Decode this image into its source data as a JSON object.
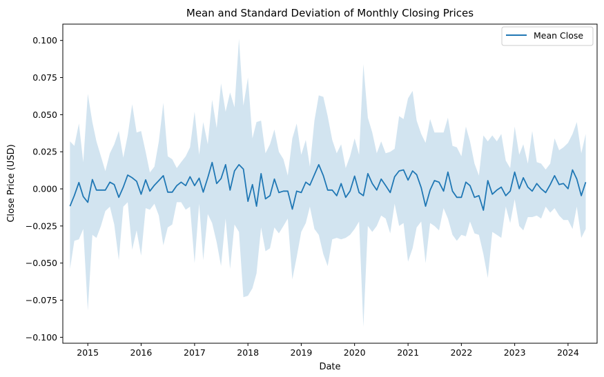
{
  "chart_data": {
    "type": "line",
    "title": "Mean and Standard Deviation of Monthly Closing Prices",
    "xlabel": "Date",
    "ylabel": "Close Price (USD)",
    "xlim": [
      "2014-07-14",
      "2024-07-18"
    ],
    "ylim": [
      -0.104,
      0.111
    ],
    "x_ticks": [
      "2015",
      "2016",
      "2017",
      "2018",
      "2019",
      "2020",
      "2021",
      "2022",
      "2023",
      "2024"
    ],
    "y_ticks": [
      "0.100",
      "0.075",
      "0.050",
      "0.025",
      "0.000",
      "−0.025",
      "−0.050",
      "−0.075",
      "−0.100"
    ],
    "y_tick_values": [
      0.1,
      0.075,
      0.05,
      0.025,
      0,
      -0.025,
      -0.05,
      -0.075,
      -0.1
    ],
    "legend": {
      "position": "top-right",
      "entries": [
        "Mean Close"
      ]
    },
    "grid": false,
    "x_start": "2014-09",
    "series": [
      {
        "name": "Mean Close",
        "color": "#1f77b4",
        "band_color": "#1f77b4",
        "mean": [
          -0.0117,
          -0.0045,
          0.0043,
          -0.0052,
          -0.0091,
          0.0063,
          -0.0008,
          -0.0008,
          -0.0008,
          0.0045,
          0.0029,
          -0.0057,
          0.0012,
          0.0093,
          0.0075,
          0.0051,
          -0.0036,
          0.0061,
          -0.0015,
          0.0025,
          0.0056,
          0.0089,
          -0.0022,
          -0.0022,
          0.0022,
          0.0045,
          0.0022,
          0.0082,
          0.0022,
          0.0072,
          -0.0022,
          0.0075,
          0.0178,
          0.0036,
          0.0069,
          0.0163,
          -0.0008,
          0.0121,
          0.0163,
          0.0133,
          -0.0084,
          0.0029,
          -0.0117,
          0.0103,
          -0.0067,
          -0.0046,
          0.0066,
          -0.0025,
          -0.0015,
          -0.0015,
          -0.0137,
          -0.0015,
          -0.0025,
          0.0045,
          0.0025,
          0.0096,
          0.0163,
          0.0089,
          -0.0008,
          -0.0008,
          -0.0046,
          0.0036,
          -0.0057,
          -0.0015,
          0.0086,
          -0.0025,
          -0.0046,
          0.0103,
          0.0036,
          -0.0008,
          0.0066,
          0.0022,
          -0.0025,
          0.0082,
          0.0121,
          0.0128,
          0.0059,
          0.0121,
          0.0096,
          0.0008,
          -0.0117,
          -0.0008,
          0.0056,
          0.0045,
          -0.0015,
          0.0113,
          -0.0015,
          -0.0057,
          -0.0057,
          0.0045,
          0.0022,
          -0.0057,
          -0.0046,
          -0.0144,
          0.0056,
          -0.0036,
          -0.0008,
          0.0012,
          -0.0046,
          -0.0015,
          0.0113,
          0.0001,
          0.0075,
          0.0012,
          -0.0015,
          0.0036,
          0.0001,
          -0.0025,
          0.0029,
          0.0089,
          0.0029,
          0.0036,
          0.0001,
          0.0128,
          0.0066,
          -0.0046,
          0.0045
        ],
        "upper": [
          0.032,
          0.029,
          0.044,
          0.018,
          0.064,
          0.045,
          0.032,
          0.022,
          0.012,
          0.024,
          0.03,
          0.039,
          0.021,
          0.036,
          0.057,
          0.038,
          0.039,
          0.025,
          0.011,
          0.015,
          0.032,
          0.058,
          0.022,
          0.02,
          0.014,
          0.018,
          0.022,
          0.028,
          0.052,
          0.023,
          0.045,
          0.03,
          0.06,
          0.041,
          0.071,
          0.052,
          0.065,
          0.055,
          0.101,
          0.056,
          0.075,
          0.034,
          0.045,
          0.046,
          0.024,
          0.03,
          0.04,
          0.025,
          0.02,
          0.009,
          0.034,
          0.044,
          0.023,
          0.033,
          0.015,
          0.046,
          0.063,
          0.062,
          0.049,
          0.033,
          0.024,
          0.03,
          0.014,
          0.022,
          0.034,
          0.023,
          0.084,
          0.048,
          0.038,
          0.024,
          0.032,
          0.024,
          0.025,
          0.027,
          0.049,
          0.047,
          0.061,
          0.066,
          0.046,
          0.037,
          0.031,
          0.047,
          0.038,
          0.038,
          0.038,
          0.048,
          0.029,
          0.028,
          0.022,
          0.042,
          0.032,
          0.017,
          0.009,
          0.036,
          0.032,
          0.036,
          0.032,
          0.037,
          0.019,
          0.014,
          0.042,
          0.023,
          0.03,
          0.017,
          0.039,
          0.018,
          0.017,
          0.013,
          0.017,
          0.034,
          0.026,
          0.028,
          0.031,
          0.037,
          0.045,
          0.024,
          0.037
        ],
        "lower": [
          -0.054,
          -0.035,
          -0.034,
          -0.027,
          -0.082,
          -0.031,
          -0.033,
          -0.025,
          -0.015,
          -0.012,
          -0.024,
          -0.048,
          -0.012,
          -0.009,
          -0.041,
          -0.028,
          -0.045,
          -0.013,
          -0.014,
          -0.01,
          -0.018,
          -0.038,
          -0.026,
          -0.024,
          -0.009,
          -0.009,
          -0.014,
          -0.012,
          -0.05,
          -0.01,
          -0.048,
          -0.017,
          -0.023,
          -0.036,
          -0.052,
          -0.02,
          -0.054,
          -0.024,
          -0.029,
          -0.073,
          -0.072,
          -0.067,
          -0.057,
          -0.026,
          -0.042,
          -0.04,
          -0.026,
          -0.03,
          -0.025,
          -0.02,
          -0.061,
          -0.046,
          -0.029,
          -0.023,
          -0.012,
          -0.027,
          -0.031,
          -0.044,
          -0.052,
          -0.034,
          -0.033,
          -0.034,
          -0.033,
          -0.031,
          -0.027,
          -0.022,
          -0.093,
          -0.025,
          -0.029,
          -0.025,
          -0.018,
          -0.02,
          -0.03,
          -0.01,
          -0.025,
          -0.023,
          -0.049,
          -0.04,
          -0.026,
          -0.022,
          -0.05,
          -0.023,
          -0.025,
          -0.028,
          -0.013,
          -0.02,
          -0.031,
          -0.035,
          -0.031,
          -0.032,
          -0.022,
          -0.03,
          -0.031,
          -0.044,
          -0.06,
          -0.029,
          -0.031,
          -0.033,
          -0.012,
          -0.023,
          -0.007,
          -0.025,
          -0.028,
          -0.019,
          -0.019,
          -0.018,
          -0.02,
          -0.012,
          -0.016,
          -0.013,
          -0.018,
          -0.021,
          -0.021,
          -0.027,
          -0.012,
          -0.033,
          -0.027
        ]
      }
    ]
  }
}
